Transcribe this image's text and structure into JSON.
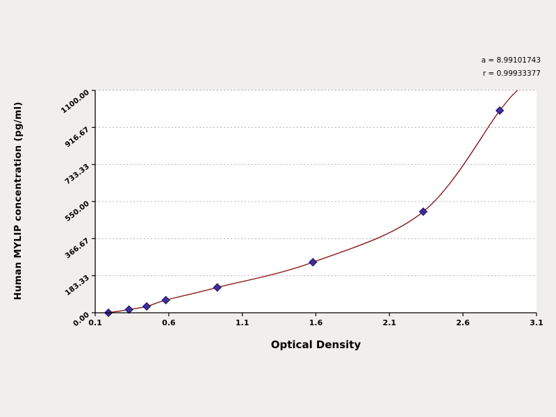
{
  "chart_data": {
    "type": "scatter",
    "title": "",
    "xlabel": "Optical Density",
    "ylabel": "Human MYLIP concentration (pg/ml)",
    "x": [
      0.19,
      0.33,
      0.45,
      0.58,
      0.93,
      1.58,
      2.33,
      2.85
    ],
    "y": [
      0,
      15.6,
      31.2,
      62.5,
      125,
      250,
      500,
      1000
    ],
    "curve_extension": {
      "x": 2.97,
      "y": 1100
    },
    "xlim": [
      0.1,
      3.1
    ],
    "ylim": [
      0,
      1100
    ],
    "xticks": {
      "values": [
        0.1,
        0.6,
        1.1,
        1.6,
        2.1,
        2.6,
        3.1
      ],
      "labels": [
        "0.1",
        "0.6",
        "1.1",
        "1.6",
        "2.1",
        "2.6",
        "3.1"
      ]
    },
    "yticks": {
      "values": [
        0,
        183.33,
        366.67,
        550.0,
        733.33,
        916.67,
        1100.0
      ],
      "labels": [
        "0.00",
        "183.33",
        "366.67",
        "550.00",
        "733.33",
        "916.67",
        "1100.00"
      ]
    },
    "grid": {
      "horizontal": true,
      "vertical": false,
      "style": "dotted"
    },
    "legend": "none",
    "annotations": {
      "a": "a = 8.99101743",
      "r": "r = 0.99933377"
    },
    "colors": {
      "curve": "#8b1a1a",
      "marker_fill": "#3c2e9e",
      "marker_stroke": "#1e1456",
      "grid": "#b0b0b0",
      "axis": "#000000",
      "plot_bg": "#ffffff",
      "figure_bg": "#f0efed",
      "text": "#000000"
    }
  }
}
